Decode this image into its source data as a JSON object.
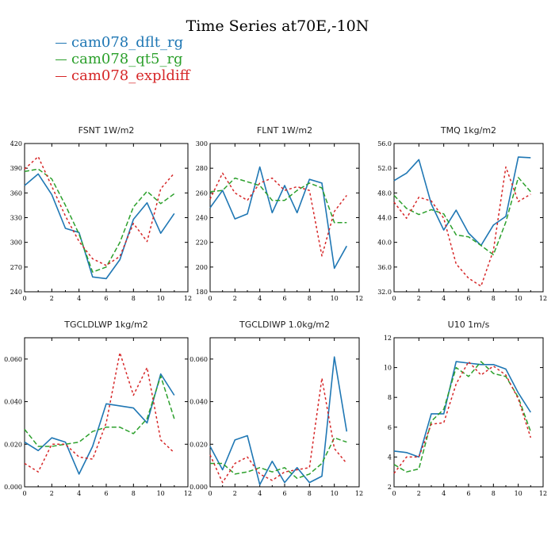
{
  "figure": {
    "title": "Time Series at70E,-10N",
    "legend": [
      {
        "label": "cam078_dflt_rg",
        "color": "#1f77b4"
      },
      {
        "label": "cam078_qt5_rg",
        "color": "#2ca02c"
      },
      {
        "label": "cam078_expldiff",
        "color": "#d62728"
      }
    ]
  },
  "chart_data": [
    {
      "type": "line",
      "title": "FSNT  1W/m2",
      "x": [
        0,
        1,
        2,
        3,
        4,
        5,
        6,
        7,
        8,
        9,
        10,
        11
      ],
      "xlim": [
        0,
        12
      ],
      "xticks": [
        0,
        2,
        4,
        6,
        8,
        10,
        12
      ],
      "ylim": [
        240,
        420
      ],
      "yticks": [
        240,
        270,
        300,
        330,
        360,
        390,
        420
      ],
      "ytick_labels": [
        "240",
        "270",
        "300",
        "330",
        "360",
        "390",
        "420"
      ],
      "series": [
        {
          "name": "cam078_dflt_rg",
          "values": [
            369,
            383,
            358,
            317,
            312,
            258,
            256,
            279,
            328,
            348,
            311,
            335
          ]
        },
        {
          "name": "cam078_qt5_rg",
          "values": [
            386,
            389,
            377,
            345,
            310,
            264,
            270,
            300,
            343,
            362,
            347,
            359
          ]
        },
        {
          "name": "cam078_expldiff",
          "values": [
            389,
            404,
            368,
            332,
            301,
            280,
            272,
            283,
            323,
            301,
            365,
            384
          ]
        }
      ]
    },
    {
      "type": "line",
      "title": "FLNT  1W/m2",
      "x": [
        0,
        1,
        2,
        3,
        4,
        5,
        6,
        7,
        8,
        9,
        10,
        11
      ],
      "xlim": [
        0,
        12
      ],
      "xticks": [
        0,
        2,
        4,
        6,
        8,
        10,
        12
      ],
      "ylim": [
        180,
        300
      ],
      "yticks": [
        180,
        200,
        220,
        240,
        260,
        280,
        300
      ],
      "ytick_labels": [
        "180",
        "200",
        "220",
        "240",
        "260",
        "280",
        "300"
      ],
      "series": [
        {
          "name": "cam078_dflt_rg",
          "values": [
            248,
            262,
            239,
            243,
            281,
            244,
            266,
            244,
            271,
            268,
            199,
            217
          ]
        },
        {
          "name": "cam078_qt5_rg",
          "values": [
            261,
            262,
            272,
            269,
            266,
            254,
            254,
            262,
            268,
            264,
            236,
            236
          ]
        },
        {
          "name": "cam078_expldiff",
          "values": [
            255,
            276,
            260,
            254,
            268,
            272,
            262,
            265,
            262,
            209,
            245,
            258
          ]
        }
      ]
    },
    {
      "type": "line",
      "title": "TMQ  1kg/m2",
      "x": [
        0,
        1,
        2,
        3,
        4,
        5,
        6,
        7,
        8,
        9,
        10,
        11
      ],
      "xlim": [
        0,
        12
      ],
      "xticks": [
        0,
        2,
        4,
        6,
        8,
        10,
        12
      ],
      "ylim": [
        32,
        56
      ],
      "yticks": [
        32,
        36,
        40,
        44,
        48,
        52,
        56
      ],
      "ytick_labels": [
        "32.0",
        "36.0",
        "40.0",
        "44.0",
        "48.0",
        "52.0",
        "56.0"
      ],
      "series": [
        {
          "name": "cam078_dflt_rg",
          "values": [
            50.0,
            51.2,
            53.4,
            46.2,
            42.0,
            45.2,
            41.5,
            39.5,
            42.8,
            44.2,
            53.8,
            53.7
          ]
        },
        {
          "name": "cam078_qt5_rg",
          "values": [
            47.6,
            45.5,
            44.5,
            45.3,
            44.6,
            41.2,
            40.9,
            39.5,
            38.0,
            43.3,
            50.5,
            48.2
          ]
        },
        {
          "name": "cam078_expldiff",
          "values": [
            46.5,
            43.9,
            47.3,
            46.7,
            43.9,
            36.5,
            34.2,
            32.9,
            38.7,
            52.2,
            46.6,
            47.8
          ]
        }
      ]
    },
    {
      "type": "line",
      "title": "TGCLDLWP  1kg/m2",
      "x": [
        0,
        1,
        2,
        3,
        4,
        5,
        6,
        7,
        8,
        9,
        10,
        11
      ],
      "xlim": [
        0,
        12
      ],
      "xticks": [
        0,
        2,
        4,
        6,
        8,
        10,
        12
      ],
      "ylim": [
        0,
        0.07
      ],
      "yticks": [
        0,
        0.02,
        0.04,
        0.06
      ],
      "ytick_labels": [
        "0.000",
        "0.020",
        "0.040",
        "0.060"
      ],
      "series": [
        {
          "name": "cam078_dflt_rg",
          "values": [
            0.021,
            0.017,
            0.023,
            0.021,
            0.006,
            0.019,
            0.039,
            0.038,
            0.037,
            0.03,
            0.053,
            0.043
          ]
        },
        {
          "name": "cam078_qt5_rg",
          "values": [
            0.027,
            0.019,
            0.019,
            0.02,
            0.021,
            0.026,
            0.028,
            0.028,
            0.025,
            0.032,
            0.052,
            0.032
          ]
        },
        {
          "name": "cam078_expldiff",
          "values": [
            0.011,
            0.007,
            0.02,
            0.02,
            0.014,
            0.013,
            0.03,
            0.063,
            0.043,
            0.056,
            0.022,
            0.016
          ]
        }
      ]
    },
    {
      "type": "line",
      "title": "TGCLDIWP  1.0kg/m2",
      "x": [
        0,
        1,
        2,
        3,
        4,
        5,
        6,
        7,
        8,
        9,
        10,
        11
      ],
      "xlim": [
        0,
        12
      ],
      "xticks": [
        0,
        2,
        4,
        6,
        8,
        10,
        12
      ],
      "ylim": [
        0,
        0.07
      ],
      "yticks": [
        0,
        0.02,
        0.04,
        0.06
      ],
      "ytick_labels": [
        "0.000",
        "0.020",
        "0.040",
        "0.060"
      ],
      "series": [
        {
          "name": "cam078_dflt_rg",
          "values": [
            0.019,
            0.008,
            0.022,
            0.024,
            0.001,
            0.012,
            0.002,
            0.009,
            0.002,
            0.005,
            0.061,
            0.026
          ]
        },
        {
          "name": "cam078_qt5_rg",
          "values": [
            0.011,
            0.011,
            0.006,
            0.007,
            0.009,
            0.007,
            0.009,
            0.004,
            0.006,
            0.011,
            0.023,
            0.021
          ]
        },
        {
          "name": "cam078_expldiff",
          "values": [
            0.015,
            0.002,
            0.011,
            0.014,
            0.006,
            0.003,
            0.007,
            0.008,
            0.009,
            0.051,
            0.018,
            0.011
          ]
        }
      ]
    },
    {
      "type": "line",
      "title": "U10  1m/s",
      "x": [
        0,
        1,
        2,
        3,
        4,
        5,
        6,
        7,
        8,
        9,
        10,
        11
      ],
      "xlim": [
        0,
        12
      ],
      "xticks": [
        0,
        2,
        4,
        6,
        8,
        10,
        12
      ],
      "ylim": [
        2,
        12
      ],
      "yticks": [
        2,
        4,
        6,
        8,
        10,
        12
      ],
      "ytick_labels": [
        "2",
        "4",
        "6",
        "8",
        "10",
        "12"
      ],
      "series": [
        {
          "name": "cam078_dflt_rg",
          "values": [
            4.4,
            4.3,
            4.0,
            6.9,
            6.9,
            10.4,
            10.3,
            10.2,
            10.2,
            9.9,
            8.3,
            7.0
          ]
        },
        {
          "name": "cam078_qt5_rg",
          "values": [
            3.5,
            3.0,
            3.2,
            6.4,
            7.2,
            10.0,
            9.4,
            10.4,
            9.6,
            9.4,
            8.0,
            5.7
          ]
        },
        {
          "name": "cam078_expldiff",
          "values": [
            2.9,
            4.0,
            4.0,
            6.2,
            6.3,
            8.9,
            10.4,
            9.5,
            10.1,
            9.5,
            7.9,
            5.3
          ]
        }
      ]
    }
  ]
}
